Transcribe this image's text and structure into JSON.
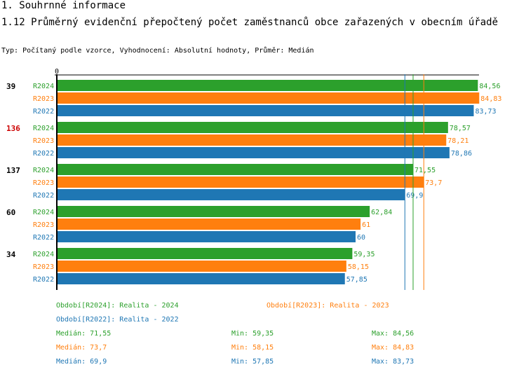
{
  "header": {
    "section": "1. Souhrnné informace",
    "title": "1.12 Průměrný evidenční přepočtený počet zaměstnanců obce zařazených v obecním úřadě",
    "subtitle": "Typ: Počítaný podle vzorce, Vyhodnocení: Absolutní hodnoty, Průměr: Medián"
  },
  "colors": {
    "R2024": "#2ca02c",
    "R2023": "#ff7f0e",
    "R2022": "#1f77b4",
    "highlight": "#cc0000"
  },
  "chart_data": {
    "type": "bar",
    "orientation": "horizontal",
    "axis_zero_label": "0",
    "xlim": [
      0,
      90
    ],
    "groups": [
      {
        "label": "39",
        "highlight": false,
        "bars": [
          {
            "series": "R2024",
            "value": 84.56,
            "value_label": "84,56"
          },
          {
            "series": "R2023",
            "value": 84.83,
            "value_label": "84,83"
          },
          {
            "series": "R2022",
            "value": 83.73,
            "value_label": "83,73"
          }
        ]
      },
      {
        "label": "136",
        "highlight": true,
        "bars": [
          {
            "series": "R2024",
            "value": 78.57,
            "value_label": "78,57"
          },
          {
            "series": "R2023",
            "value": 78.21,
            "value_label": "78,21"
          },
          {
            "series": "R2022",
            "value": 78.86,
            "value_label": "78,86"
          }
        ]
      },
      {
        "label": "137",
        "highlight": false,
        "bars": [
          {
            "series": "R2024",
            "value": 71.55,
            "value_label": "71,55"
          },
          {
            "series": "R2023",
            "value": 73.7,
            "value_label": "73,7"
          },
          {
            "series": "R2022",
            "value": 69.9,
            "value_label": "69,9"
          }
        ]
      },
      {
        "label": "60",
        "highlight": false,
        "bars": [
          {
            "series": "R2024",
            "value": 62.84,
            "value_label": "62,84"
          },
          {
            "series": "R2023",
            "value": 61,
            "value_label": "61"
          },
          {
            "series": "R2022",
            "value": 60,
            "value_label": "60"
          }
        ]
      },
      {
        "label": "34",
        "highlight": false,
        "bars": [
          {
            "series": "R2024",
            "value": 59.35,
            "value_label": "59,35"
          },
          {
            "series": "R2023",
            "value": 58.15,
            "value_label": "58,15"
          },
          {
            "series": "R2022",
            "value": 57.85,
            "value_label": "57,85"
          }
        ]
      }
    ],
    "median_lines": [
      {
        "series": "R2024",
        "value": 71.55
      },
      {
        "series": "R2023",
        "value": 73.7
      },
      {
        "series": "R2022",
        "value": 69.9
      }
    ]
  },
  "legend": {
    "r2024": "Období[R2024]: Realita - 2024",
    "r2023": "Období[R2023]: Realita - 2023",
    "r2022": "Období[R2022]: Realita - 2022",
    "stats": [
      {
        "series": "R2024",
        "median": "Medián: 71,55",
        "min": "Min: 59,35",
        "max": "Max: 84,56"
      },
      {
        "series": "R2023",
        "median": "Medián: 73,7",
        "min": "Min: 58,15",
        "max": "Max: 84,83"
      },
      {
        "series": "R2022",
        "median": "Medián: 69,9",
        "min": "Min: 57,85",
        "max": "Max: 83,73"
      }
    ]
  }
}
